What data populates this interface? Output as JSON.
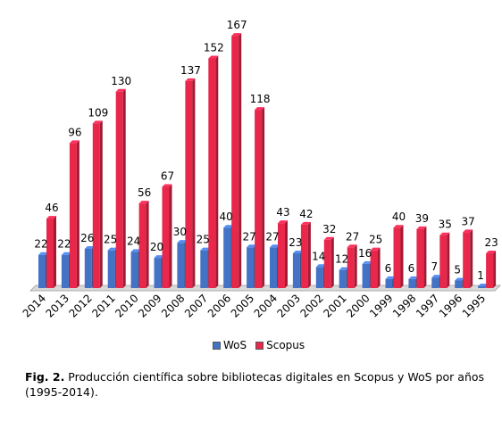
{
  "chart_data": {
    "type": "bar",
    "categories": [
      "2014",
      "2013",
      "2012",
      "2011",
      "2010",
      "2009",
      "2008",
      "2007",
      "2006",
      "2005",
      "2004",
      "2003",
      "2002",
      "2001",
      "2000",
      "1999",
      "1998",
      "1997",
      "1996",
      "1995"
    ],
    "series": [
      {
        "name": "WoS",
        "color": "#4472C4",
        "values": [
          22,
          22,
          26,
          25,
          24,
          20,
          30,
          25,
          40,
          27,
          27,
          23,
          14,
          12,
          16,
          6,
          6,
          7,
          5,
          1
        ]
      },
      {
        "name": "Scopus",
        "color": "#E8274B",
        "values": [
          46,
          96,
          109,
          130,
          56,
          67,
          137,
          152,
          167,
          118,
          43,
          42,
          32,
          27,
          25,
          40,
          39,
          35,
          37,
          23
        ]
      }
    ],
    "ylim": [
      0,
      170
    ],
    "grid": false,
    "legend": "bottom",
    "title": "",
    "xlabel": "",
    "ylabel": ""
  },
  "caption": {
    "label": "Fig. 2.",
    "text": " Producción científica sobre bibliotecas digitales en Scopus y WoS por años (1995-2014)."
  }
}
